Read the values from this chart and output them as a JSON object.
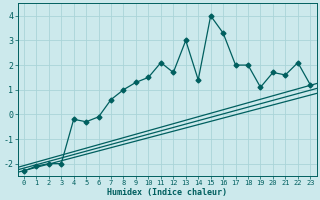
{
  "xlabel": "Humidex (Indice chaleur)",
  "ylabel": "",
  "bg_color": "#cce9ec",
  "grid_color": "#aad4d8",
  "line_color": "#005f5f",
  "x_data": [
    0,
    1,
    2,
    3,
    4,
    5,
    6,
    7,
    8,
    9,
    10,
    11,
    12,
    13,
    14,
    15,
    16,
    17,
    18,
    19,
    20,
    21,
    22,
    23
  ],
  "y_data": [
    -2.3,
    -2.1,
    -2.0,
    -2.0,
    -0.2,
    -0.3,
    -0.1,
    0.6,
    1.0,
    1.3,
    1.5,
    2.1,
    1.7,
    3.0,
    1.4,
    4.0,
    3.3,
    2.0,
    2.0,
    1.1,
    1.7,
    1.6,
    2.1,
    1.2
  ],
  "ylim": [
    -2.5,
    4.5
  ],
  "xlim": [
    -0.5,
    23.5
  ],
  "yticks": [
    -2,
    -1,
    0,
    1,
    2,
    3,
    4
  ],
  "xticks": [
    0,
    1,
    2,
    3,
    4,
    5,
    6,
    7,
    8,
    9,
    10,
    11,
    12,
    13,
    14,
    15,
    16,
    17,
    18,
    19,
    20,
    21,
    22,
    23
  ],
  "trend_lines": [
    {
      "x0": -0.5,
      "y0": -2.35,
      "x1": 23.5,
      "y1": 0.85
    },
    {
      "x0": -0.5,
      "y0": -2.25,
      "x1": 23.5,
      "y1": 1.05
    },
    {
      "x0": -0.5,
      "y0": -2.15,
      "x1": 23.5,
      "y1": 1.25
    }
  ],
  "trend_color": "#005f5f",
  "marker": "D",
  "marker_size": 2.5
}
